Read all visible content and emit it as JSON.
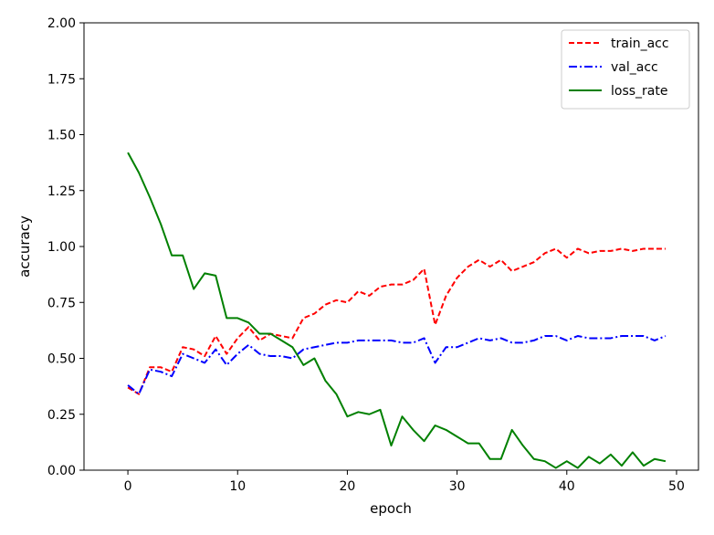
{
  "chart_data": {
    "type": "line",
    "title": "",
    "xlabel": "epoch",
    "ylabel": "accuracy",
    "xlim": [
      -4,
      52
    ],
    "ylim": [
      0,
      2.0
    ],
    "x_ticks": [
      0,
      10,
      20,
      30,
      40,
      50
    ],
    "y_ticks": [
      0,
      0.25,
      0.5,
      0.75,
      1.0,
      1.25,
      1.5,
      1.75,
      2.0
    ],
    "x_tick_labels": [
      "0",
      "10",
      "20",
      "30",
      "40",
      "50"
    ],
    "y_tick_labels": [
      "0.00",
      "0.25",
      "0.50",
      "0.75",
      "1.00",
      "1.25",
      "1.50",
      "1.75",
      "2.00"
    ],
    "grid": false,
    "legend_position": "top-right",
    "x": [
      0,
      1,
      2,
      3,
      4,
      5,
      6,
      7,
      8,
      9,
      10,
      11,
      12,
      13,
      14,
      15,
      16,
      17,
      18,
      19,
      20,
      21,
      22,
      23,
      24,
      25,
      26,
      27,
      28,
      29,
      30,
      31,
      32,
      33,
      34,
      35,
      36,
      37,
      38,
      39,
      40,
      41,
      42,
      43,
      44,
      45,
      46,
      47,
      48,
      49
    ],
    "series": [
      {
        "name": "train_acc",
        "color": "#ff0000",
        "style": "dashed",
        "values": [
          0.37,
          0.34,
          0.46,
          0.46,
          0.44,
          0.55,
          0.54,
          0.51,
          0.6,
          0.52,
          0.59,
          0.64,
          0.58,
          0.61,
          0.6,
          0.59,
          0.68,
          0.7,
          0.74,
          0.76,
          0.75,
          0.8,
          0.78,
          0.82,
          0.83,
          0.83,
          0.85,
          0.9,
          0.65,
          0.78,
          0.86,
          0.91,
          0.94,
          0.91,
          0.94,
          0.89,
          0.91,
          0.93,
          0.97,
          0.99,
          0.95,
          0.99,
          0.97,
          0.98,
          0.98,
          0.99,
          0.98,
          0.99,
          0.99,
          0.99
        ]
      },
      {
        "name": "val_acc",
        "color": "#0000ff",
        "style": "dashdot",
        "values": [
          0.38,
          0.34,
          0.45,
          0.44,
          0.42,
          0.52,
          0.5,
          0.48,
          0.54,
          0.47,
          0.52,
          0.56,
          0.52,
          0.51,
          0.51,
          0.5,
          0.54,
          0.55,
          0.56,
          0.57,
          0.57,
          0.58,
          0.58,
          0.58,
          0.58,
          0.57,
          0.57,
          0.59,
          0.48,
          0.55,
          0.55,
          0.57,
          0.59,
          0.58,
          0.59,
          0.57,
          0.57,
          0.58,
          0.6,
          0.6,
          0.58,
          0.6,
          0.59,
          0.59,
          0.59,
          0.6,
          0.6,
          0.6,
          0.58,
          0.6
        ]
      },
      {
        "name": "loss_rate",
        "color": "#008000",
        "style": "solid",
        "values": [
          1.42,
          1.33,
          1.22,
          1.1,
          0.96,
          0.96,
          0.81,
          0.88,
          0.87,
          0.68,
          0.68,
          0.66,
          0.61,
          0.61,
          0.58,
          0.55,
          0.47,
          0.5,
          0.4,
          0.34,
          0.24,
          0.26,
          0.25,
          0.27,
          0.11,
          0.24,
          0.18,
          0.13,
          0.2,
          0.18,
          0.15,
          0.12,
          0.12,
          0.05,
          0.05,
          0.18,
          0.11,
          0.05,
          0.04,
          0.01,
          0.04,
          0.01,
          0.06,
          0.03,
          0.07,
          0.02,
          0.08,
          0.02,
          0.05,
          0.04
        ]
      }
    ]
  }
}
